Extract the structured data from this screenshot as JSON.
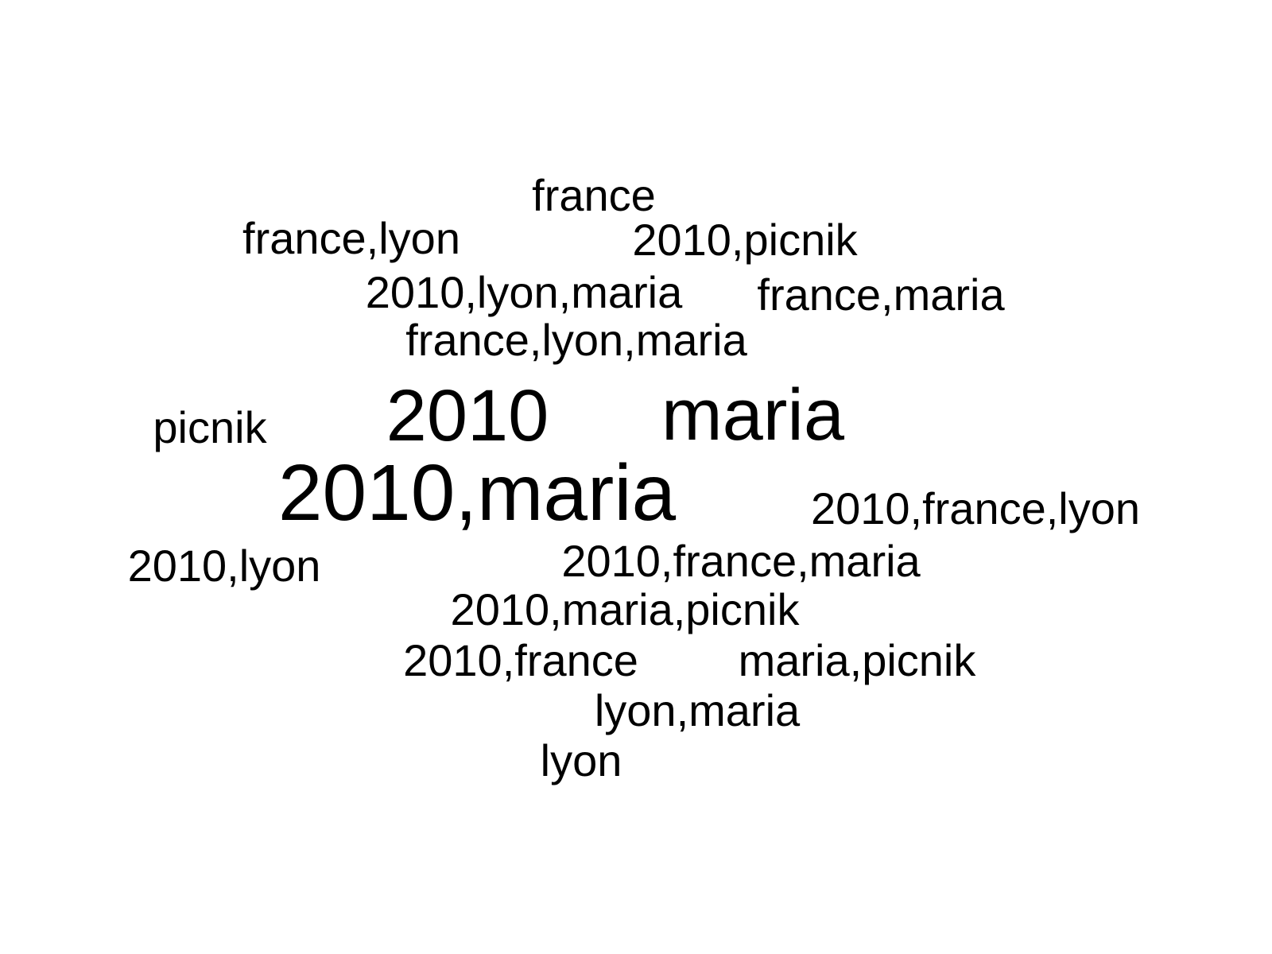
{
  "words": [
    {
      "text": "france"
    },
    {
      "text": "france,lyon"
    },
    {
      "text": "2010,picnik"
    },
    {
      "text": "2010,lyon,maria"
    },
    {
      "text": "france,maria"
    },
    {
      "text": "france,lyon,maria"
    },
    {
      "text": "picnik"
    },
    {
      "text": "2010"
    },
    {
      "text": "maria"
    },
    {
      "text": "2010,maria"
    },
    {
      "text": "2010,france,lyon"
    },
    {
      "text": "2010,lyon"
    },
    {
      "text": "2010,france,maria"
    },
    {
      "text": "2010,maria,picnik"
    },
    {
      "text": "2010,france"
    },
    {
      "text": "maria,picnik"
    },
    {
      "text": "lyon,maria"
    },
    {
      "text": "lyon"
    }
  ]
}
